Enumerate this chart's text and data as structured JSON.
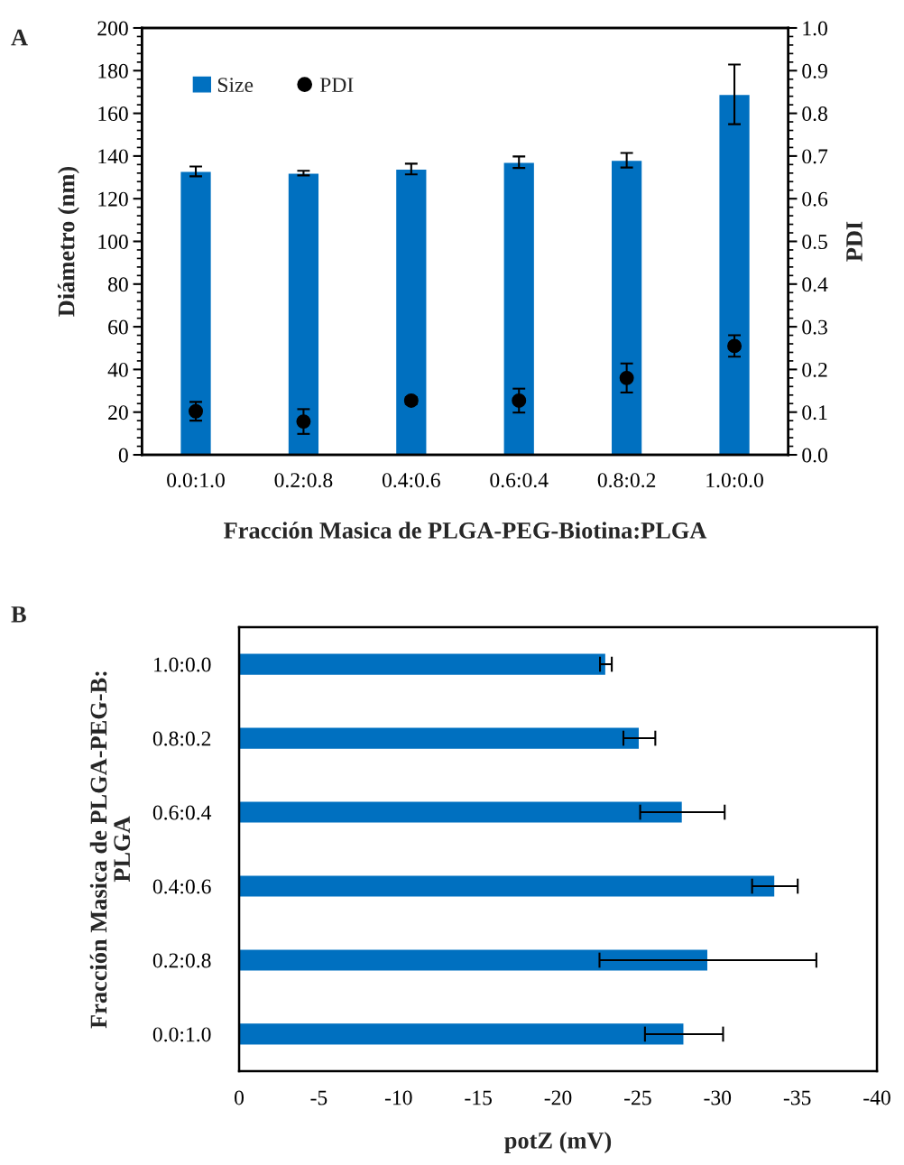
{
  "chart_data": [
    {
      "type": "bar",
      "annotations": [
        "A"
      ],
      "xlabel": "Fracción Masica de PLGA-PEG-Biotina:PLGA",
      "ylabel": "Diámetro (nm)",
      "y2label": "PDI",
      "categories": [
        "0.0:1.0",
        "0.2:0.8",
        "0.4:0.6",
        "0.6:0.4",
        "0.8:0.2",
        "1.0:0.0"
      ],
      "series": [
        {
          "name": "Size",
          "type": "bar",
          "color": "#0070c0",
          "values": [
            132.8,
            132.0,
            133.9,
            137.1,
            138.0,
            168.9
          ],
          "errors": [
            2.3,
            1.1,
            2.5,
            2.7,
            3.4,
            14.0
          ]
        },
        {
          "name": "PDI",
          "type": "scatter",
          "axis": "y2",
          "color": "#000000",
          "values": [
            0.102,
            0.078,
            0.127,
            0.127,
            0.18,
            0.255
          ],
          "errors": [
            0.022,
            0.029,
            0.008,
            0.028,
            0.034,
            0.025
          ]
        }
      ],
      "ylim": [
        0,
        200
      ],
      "yticks": [
        0,
        20,
        40,
        60,
        80,
        100,
        120,
        140,
        160,
        180,
        200
      ],
      "y2lim": [
        0,
        1.0
      ],
      "y2ticks": [
        {
          "value": 0,
          "label": "0.0"
        },
        0.1,
        0.2,
        0.3,
        0.4,
        0.5,
        0.6,
        0.7,
        0.8,
        0.9,
        {
          "value": 1,
          "label": "1.0"
        }
      ],
      "marker": "circle",
      "legend": "top left",
      "grid": false
    },
    {
      "type": "bar",
      "orientation": "horizontal",
      "annotations": [
        "B"
      ],
      "xlabel": "potZ (mV)",
      "ylabel": "Fracción Masica de PLGA-PEG-B:\nPLGA",
      "categories": [
        "1.0:0.0",
        "0.8:0.2",
        "0.6:0.4",
        "0.4:0.6",
        "0.2:0.8",
        "0.0:1.0"
      ],
      "series": [
        {
          "color": "#0070c0",
          "values": [
            -23.0,
            -25.1,
            -27.8,
            -33.6,
            -29.4,
            -27.9
          ],
          "errors": [
            0.37,
            1.0,
            2.65,
            1.43,
            6.8,
            2.45
          ]
        }
      ],
      "xlim": [
        0,
        -40
      ],
      "xticks": [
        0,
        -5,
        -10,
        -15,
        -20,
        -25,
        -30,
        -35,
        -40
      ],
      "legend": false,
      "grid": false
    }
  ]
}
